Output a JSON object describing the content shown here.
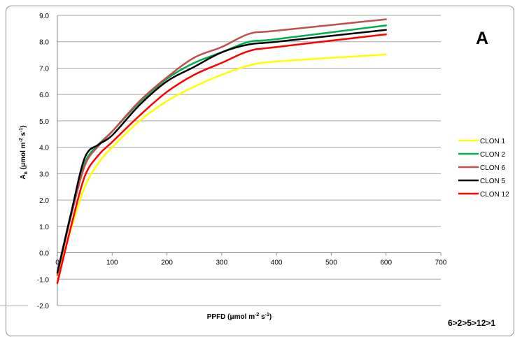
{
  "chart_data": {
    "type": "line",
    "panel_label": "A",
    "xlabel_main": "PPFD (μmol m",
    "xlabel_sup": "-2",
    "xlabel_tail": " s",
    "xlabel_sup2": "-1",
    "xlabel_end": ")",
    "ylabel_main": "A",
    "ylabel_sub": "n",
    "ylabel_mid": " (μmol m",
    "ylabel_sup": "-2",
    "ylabel_tail": " s",
    "ylabel_sup2": "-1",
    "ylabel_end": ")",
    "xlim": [
      0,
      700
    ],
    "ylim": [
      -2,
      9
    ],
    "x_ticks": [
      0,
      100,
      200,
      300,
      400,
      500,
      600,
      700
    ],
    "x_tick_labels": [
      "0",
      "100",
      "200",
      "300",
      "400",
      "500",
      "600",
      "700"
    ],
    "y_ticks": [
      -2,
      -1,
      0,
      1,
      2,
      3,
      4,
      5,
      6,
      7,
      8,
      9
    ],
    "y_tick_labels": [
      "-2.0",
      "-1.0",
      "0.0",
      "1.0",
      "2.0",
      "3.0",
      "4.0",
      "5.0",
      "6.0",
      "7.0",
      "8.0",
      "9.0"
    ],
    "grid": "horizontal",
    "legend_position": "right",
    "annotation": "6>2>5>12>1",
    "series": [
      {
        "name": "CLON 1",
        "color": "#ffff00",
        "x": [
          0,
          25,
          50,
          75,
          100,
          150,
          200,
          250,
          300,
          350,
          400,
          600
        ],
        "y": [
          -0.9,
          0.9,
          2.5,
          3.4,
          4.0,
          5.0,
          5.75,
          6.3,
          6.75,
          7.1,
          7.25,
          7.52
        ]
      },
      {
        "name": "CLON 2",
        "color": "#00b050",
        "x": [
          0,
          25,
          50,
          75,
          100,
          150,
          200,
          250,
          300,
          350,
          400,
          600
        ],
        "y": [
          -0.8,
          1.5,
          3.4,
          4.1,
          4.6,
          5.7,
          6.6,
          7.2,
          7.6,
          8.0,
          8.1,
          8.62
        ]
      },
      {
        "name": "CLON 6",
        "color": "#c0504d",
        "x": [
          0,
          25,
          50,
          75,
          100,
          150,
          200,
          250,
          300,
          350,
          400,
          600
        ],
        "y": [
          -0.85,
          1.4,
          3.3,
          4.05,
          4.6,
          5.75,
          6.65,
          7.4,
          7.8,
          8.3,
          8.42,
          8.85
        ]
      },
      {
        "name": "CLON 5",
        "color": "#000000",
        "x": [
          0,
          25,
          50,
          75,
          100,
          150,
          200,
          250,
          300,
          350,
          400,
          600
        ],
        "y": [
          -0.75,
          1.5,
          3.6,
          4.1,
          4.45,
          5.6,
          6.5,
          7.05,
          7.6,
          7.9,
          8.0,
          8.45
        ]
      },
      {
        "name": "CLON 12",
        "color": "#ff0000",
        "x": [
          0,
          25,
          50,
          75,
          100,
          150,
          200,
          250,
          300,
          350,
          400,
          600
        ],
        "y": [
          -1.15,
          1.0,
          2.9,
          3.7,
          4.2,
          5.2,
          6.1,
          6.75,
          7.2,
          7.65,
          7.8,
          8.28
        ]
      }
    ]
  }
}
